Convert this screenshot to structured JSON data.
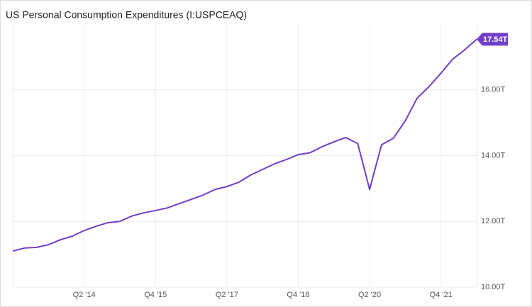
{
  "chart_data": {
    "type": "line",
    "title": "US Personal Consumption Expenditures (I:USPCEAQ)",
    "categories": [
      null,
      null,
      null,
      null,
      null,
      null,
      "Q2 '14",
      null,
      null,
      null,
      null,
      null,
      "Q4 '15",
      null,
      null,
      null,
      null,
      null,
      "Q2 '17",
      null,
      null,
      null,
      null,
      null,
      "Q4 '18",
      null,
      null,
      null,
      null,
      null,
      "Q2 '20",
      null,
      null,
      null,
      null,
      null,
      "Q4 '21",
      null,
      null,
      null
    ],
    "series": [
      {
        "color": "#6f3fc9",
        "values": [
          11.1,
          11.19,
          11.21,
          11.29,
          11.44,
          11.55,
          11.72,
          11.85,
          11.96,
          12.0,
          12.16,
          12.26,
          12.33,
          12.41,
          12.54,
          12.67,
          12.8,
          12.97,
          13.06,
          13.19,
          13.41,
          13.58,
          13.75,
          13.88,
          14.03,
          14.09,
          14.27,
          14.42,
          14.55,
          14.37,
          12.97,
          14.33,
          14.53,
          15.06,
          15.75,
          16.1,
          16.51,
          16.94,
          17.22,
          17.54
        ],
        "value_labels": [
          null,
          null,
          null,
          null,
          null,
          null,
          null,
          null,
          null,
          null,
          null,
          null,
          null,
          null,
          null,
          null,
          null,
          null,
          null,
          null,
          null,
          null,
          null,
          null,
          null,
          null,
          null,
          null,
          null,
          null,
          null,
          null,
          null,
          null,
          null,
          null,
          null,
          null,
          null,
          "17.54T"
        ]
      }
    ],
    "ylim": [
      10,
      18
    ],
    "yticks": [
      {
        "value": 10,
        "label": "10.00T"
      },
      {
        "value": 12,
        "label": "12.00T"
      },
      {
        "value": 14,
        "label": "14.00T"
      },
      {
        "value": 16,
        "label": "16.00T"
      }
    ],
    "grid": true
  }
}
